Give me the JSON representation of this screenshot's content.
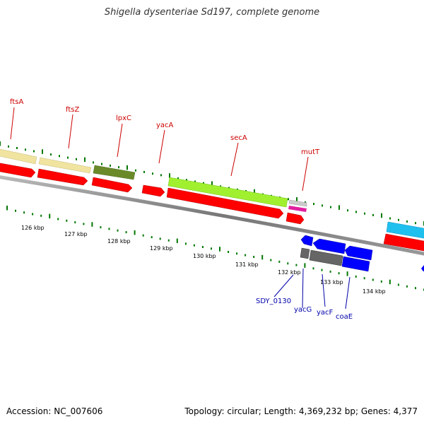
{
  "header": {
    "title": "Shigella dysenteriae Sd197, complete genome"
  },
  "footer": {
    "accession": "Accession: NC_007606",
    "summary": "Topology: circular; Length: 4,369,232 bp; Genes: 4,377"
  },
  "colors": {
    "forward_label": "#cc0000",
    "reverse_label": "#0000aa",
    "tick": "#007700",
    "cds": "#ff0000",
    "cds_reverse": "#0000ff"
  },
  "scale": {
    "labels": [
      "126 kbp",
      "127 kbp",
      "128 kbp",
      "129 kbp",
      "130 kbp",
      "131 kbp",
      "132 kbp",
      "133 kbp",
      "134 kbp"
    ]
  },
  "genes_forward": [
    {
      "name": "ftsA",
      "color": "#cc0000"
    },
    {
      "name": "ftsZ",
      "color": "#cc0000"
    },
    {
      "name": "lpxC",
      "color": "#cc0000"
    },
    {
      "name": "yacA",
      "color": "#cc0000"
    },
    {
      "name": "secA",
      "color": "#cc0000"
    },
    {
      "name": "mutT",
      "color": "#cc0000"
    }
  ],
  "genes_reverse": [
    {
      "name": "SDY_0130",
      "color": "#0000aa"
    },
    {
      "name": "yacG",
      "color": "#0000aa"
    },
    {
      "name": "yacF",
      "color": "#0000aa"
    },
    {
      "name": "coaE",
      "color": "#0000aa"
    }
  ]
}
